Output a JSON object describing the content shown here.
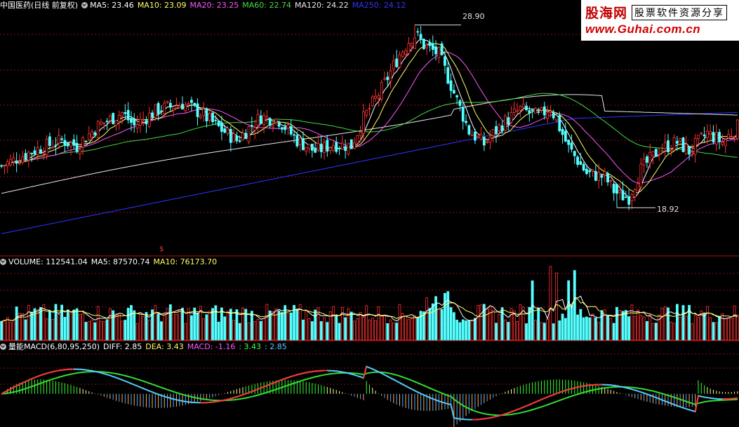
{
  "price_panel": {
    "title": "中国医药(日线 前复权)",
    "ma_legend": [
      {
        "label": "MA5: 23.46",
        "color": "#ffffff"
      },
      {
        "label": "MA10: 23.09",
        "color": "#ffff66"
      },
      {
        "label": "MA20: 23.25",
        "color": "#ff55ff"
      },
      {
        "label": "MA60: 22.74",
        "color": "#44dd44"
      },
      {
        "label": "MA120: 24.22",
        "color": "#e8e8e8"
      },
      {
        "label": "MA250: 24.12",
        "color": "#3333ff"
      }
    ],
    "high_label": "28.90",
    "low_label": "18.92",
    "event_marker": "$"
  },
  "volume_panel": {
    "legend": [
      {
        "label": "VOLUME: 112541.04",
        "color": "#ffffff"
      },
      {
        "label": "MA5: 87570.74",
        "color": "#ffffff"
      },
      {
        "label": "MA10: 76173.70",
        "color": "#ffff66"
      }
    ]
  },
  "macd_panel": {
    "legend": [
      {
        "label": "量能MACD(6,80,95,250)",
        "color": "#ffffff"
      },
      {
        "label": "DIFF: 2.85",
        "color": "#ffffff"
      },
      {
        "label": "DEA: 3.43",
        "color": "#ffff66"
      },
      {
        "label": "MACD: -1.16",
        "color": "#ff55ff"
      },
      {
        "label": ": 3.43",
        "color": "#44ff44"
      },
      {
        "label": ": 2.85",
        "color": "#55ccff"
      }
    ]
  },
  "logo": {
    "brand": "股海网",
    "slogan": "股票软件资源分享",
    "url": "www.Guhai.com.cn"
  },
  "colors": {
    "up": "#ff3232",
    "down": "#54ffff",
    "grid": "#8b1010",
    "ma5": "#ffffff",
    "ma10": "#ffff66",
    "ma20": "#ff55ff",
    "ma60": "#44dd44",
    "ma120": "#e8e8e8",
    "ma250": "#3333ff"
  },
  "chart_data": {
    "type": "candlestick",
    "ohlc_anchors": [
      [
        0,
        21.2
      ],
      [
        10,
        22.0
      ],
      [
        20,
        22.6
      ],
      [
        25,
        22.3
      ],
      [
        32,
        23.4
      ],
      [
        40,
        24.1
      ],
      [
        44,
        23.4
      ],
      [
        52,
        24.3
      ],
      [
        60,
        24.6
      ],
      [
        66,
        24.1
      ],
      [
        72,
        23.3
      ],
      [
        78,
        22.6
      ],
      [
        86,
        23.9
      ],
      [
        92,
        23.7
      ],
      [
        98,
        22.6
      ],
      [
        104,
        22.0
      ],
      [
        110,
        22.4
      ],
      [
        116,
        22.3
      ],
      [
        120,
        23.8
      ],
      [
        126,
        25.4
      ],
      [
        132,
        27.3
      ],
      [
        137,
        28.5
      ],
      [
        140,
        27.8
      ],
      [
        145,
        27.3
      ],
      [
        150,
        25.2
      ],
      [
        155,
        23.1
      ],
      [
        160,
        22.4
      ],
      [
        166,
        23.5
      ],
      [
        172,
        24.3
      ],
      [
        178,
        23.9
      ],
      [
        182,
        24.4
      ],
      [
        188,
        22.2
      ],
      [
        194,
        20.8
      ],
      [
        200,
        20.6
      ],
      [
        204,
        19.6
      ],
      [
        208,
        19.5
      ],
      [
        212,
        21.0
      ],
      [
        218,
        22.1
      ],
      [
        224,
        22.5
      ],
      [
        228,
        22.0
      ],
      [
        234,
        23.0
      ],
      [
        239,
        22.5
      ],
      [
        245,
        23.5
      ]
    ],
    "candle_count": 245,
    "price_high": 28.9,
    "price_low": 18.92,
    "y_range_price": [
      16.4,
      29.5
    ],
    "volume_spike_candles": [
      176,
      182,
      184,
      188,
      190
    ],
    "y_range_macd": [
      -2.5,
      3.4
    ],
    "grid": true
  }
}
